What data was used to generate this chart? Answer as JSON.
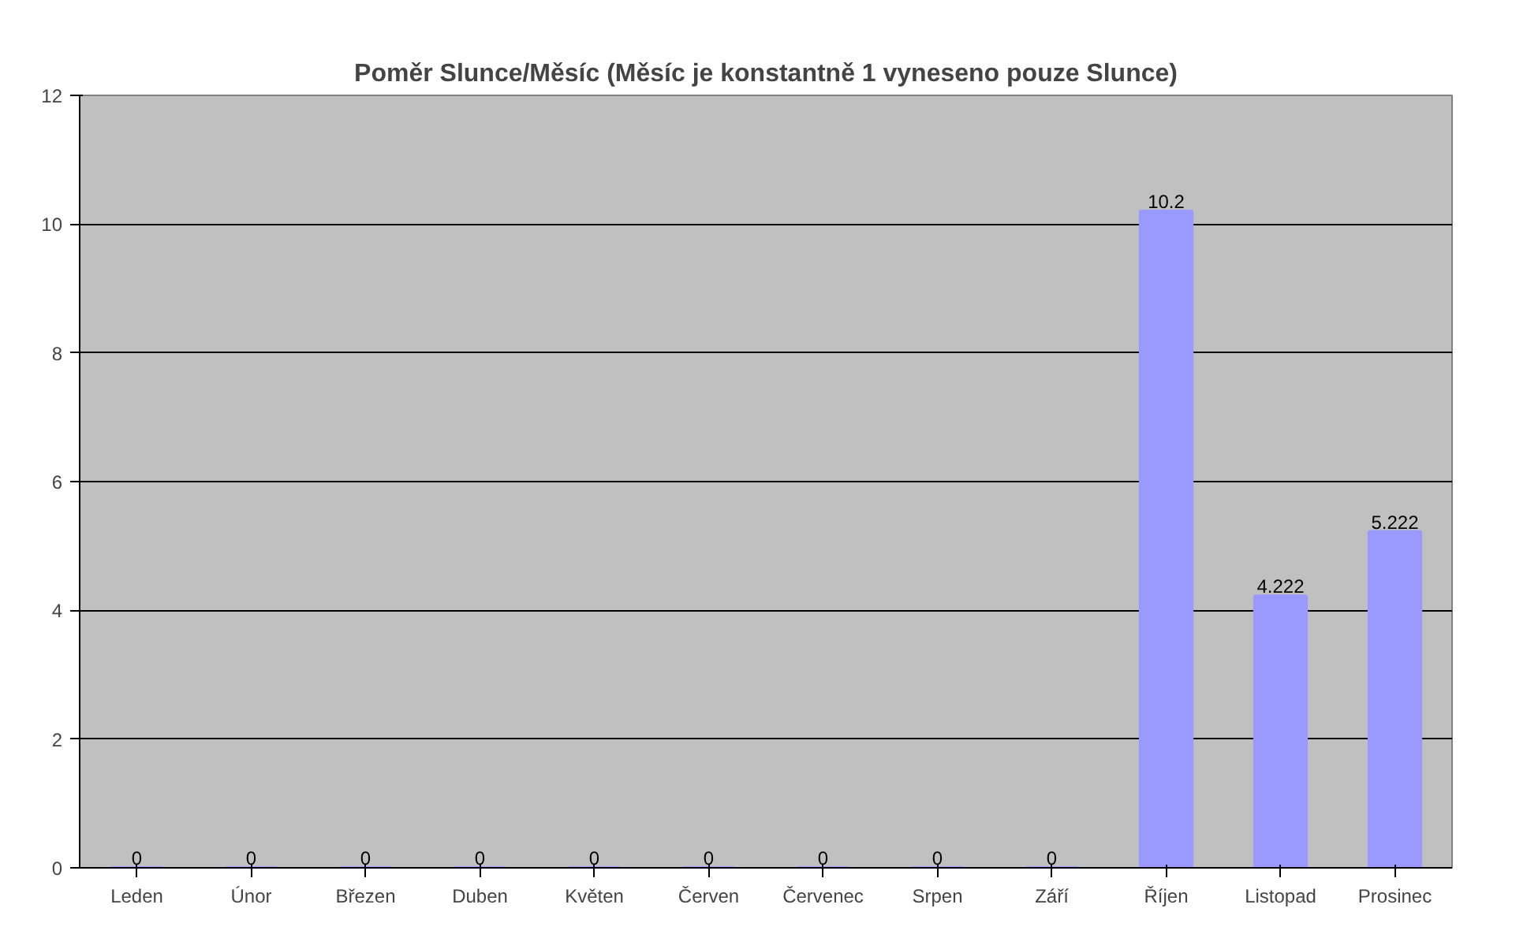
{
  "chart_data": {
    "type": "bar",
    "title": "Poměr Slunce/Měsíc (Měsíc je konstantně 1 vyneseno pouze Slunce)",
    "categories": [
      "Leden",
      "Únor",
      "Březen",
      "Duben",
      "Květen",
      "Červen",
      "Červenec",
      "Srpen",
      "Září",
      "Říjen",
      "Listopad",
      "Prosinec"
    ],
    "values": [
      0,
      0,
      0,
      0,
      0,
      0,
      0,
      0,
      0,
      10.2,
      4.222,
      5.222
    ],
    "color": "#9999ff",
    "ylim": [
      0,
      12
    ],
    "yticks": [
      0,
      2,
      4,
      6,
      8,
      10,
      12
    ],
    "grid": "y",
    "data_labels": true
  }
}
